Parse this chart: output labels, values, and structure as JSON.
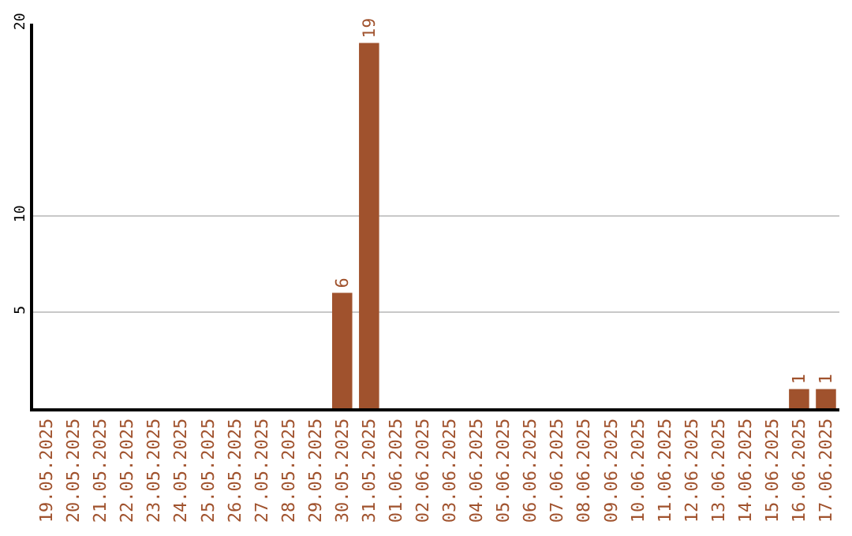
{
  "chart_data": {
    "type": "bar",
    "categories": [
      "19.05.2025",
      "20.05.2025",
      "21.05.2025",
      "22.05.2025",
      "23.05.2025",
      "24.05.2025",
      "25.05.2025",
      "26.05.2025",
      "27.05.2025",
      "28.05.2025",
      "29.05.2025",
      "30.05.2025",
      "31.05.2025",
      "01.06.2025",
      "02.06.2025",
      "03.06.2025",
      "04.06.2025",
      "05.06.2025",
      "06.06.2025",
      "07.06.2025",
      "08.06.2025",
      "09.06.2025",
      "10.06.2025",
      "11.06.2025",
      "12.06.2025",
      "13.06.2025",
      "14.06.2025",
      "15.06.2025",
      "16.06.2025",
      "17.06.2025"
    ],
    "values": [
      0,
      0,
      0,
      0,
      0,
      0,
      0,
      0,
      0,
      0,
      0,
      6,
      19,
      0,
      0,
      0,
      0,
      0,
      0,
      0,
      0,
      0,
      0,
      0,
      0,
      0,
      0,
      0,
      1,
      1
    ],
    "value_labels": [
      null,
      null,
      null,
      null,
      null,
      null,
      null,
      null,
      null,
      null,
      null,
      "6",
      "19",
      null,
      null,
      null,
      null,
      null,
      null,
      null,
      null,
      null,
      null,
      null,
      null,
      null,
      null,
      null,
      "1",
      "1"
    ],
    "color": "#a0522d",
    "ylim": [
      0,
      20
    ],
    "yticks": [
      5,
      10,
      20
    ],
    "grid": "y",
    "legend": false
  }
}
